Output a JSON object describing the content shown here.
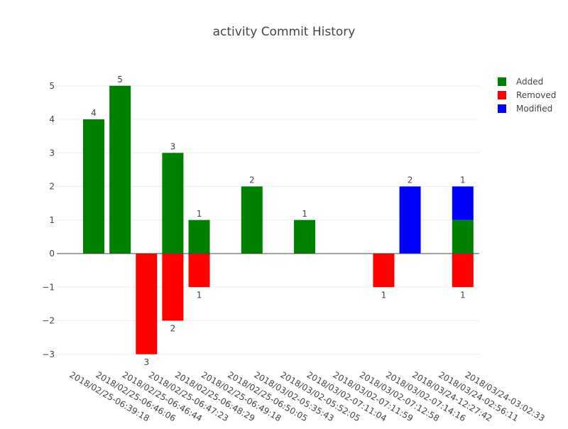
{
  "chart_data": {
    "type": "bar",
    "title": "activity Commit History",
    "xlabel": "",
    "ylabel": "",
    "ylim": [
      -3.3,
      5.5
    ],
    "yticks": [
      -3,
      -2,
      -1,
      0,
      1,
      2,
      3,
      4,
      5
    ],
    "ytick_labels": [
      "−3",
      "−2",
      "−1",
      "0",
      "1",
      "2",
      "3",
      "4",
      "5"
    ],
    "grid": true,
    "legend_position": "top-right",
    "barmode": "relative",
    "categories": [
      "2018/02/25-06:39:18",
      "2018/02/25-06:46:06",
      "2018/02/25-06:46:44",
      "2018/02/25-06:47:23",
      "2018/02/25-06:48:29",
      "2018/02/25-06:49:18",
      "2018/02/25-06:50:05",
      "2018/03/02-05:35:43",
      "2018/03/02-05:52:05",
      "2018/03/02-07:11:04",
      "2018/03/02-07:11:59",
      "2018/03/02-07:12:58",
      "2018/03/02-07:14:16",
      "2018/03/24-12:27:42",
      "2018/03/24-02:56:11",
      "2018/03/24-03:02:33"
    ],
    "series": [
      {
        "name": "Added",
        "color": "#008000",
        "values": [
          4,
          5,
          0,
          3,
          1,
          0,
          2,
          0,
          1,
          0,
          0,
          0,
          0,
          0,
          1,
          0
        ],
        "labels": [
          "4",
          "5",
          "",
          "3",
          "1",
          "",
          "2",
          "",
          "1",
          "",
          "",
          "",
          "",
          "",
          "",
          ""
        ]
      },
      {
        "name": "Removed",
        "color": "#ff0000",
        "values": [
          0,
          0,
          -3,
          -2,
          -1,
          0,
          0,
          0,
          0,
          0,
          0,
          -1,
          0,
          0,
          -1,
          0
        ],
        "labels": [
          "",
          "",
          "3",
          "2",
          "1",
          "",
          "",
          "",
          "",
          "",
          "",
          "1",
          "",
          "",
          "1",
          ""
        ]
      },
      {
        "name": "Modified",
        "color": "#0000ff",
        "values": [
          0,
          0,
          0,
          0,
          0,
          0,
          0,
          0,
          0,
          0,
          0,
          0,
          2,
          0,
          1,
          0
        ],
        "labels": [
          "",
          "",
          "",
          "",
          "",
          "",
          "",
          "",
          "",
          "",
          "",
          "",
          "2",
          "",
          "1",
          ""
        ]
      }
    ]
  }
}
